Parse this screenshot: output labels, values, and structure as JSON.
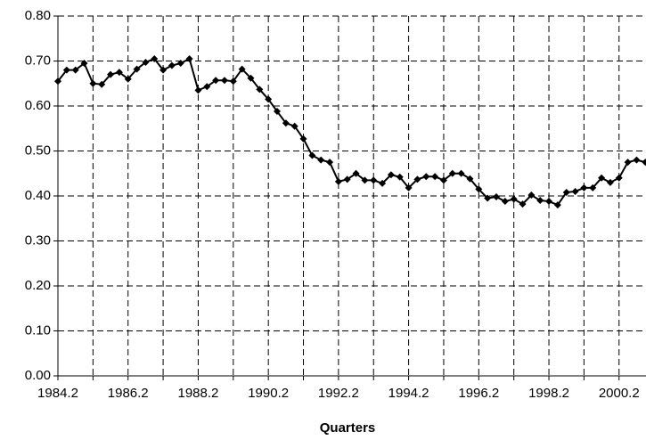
{
  "chart_data": {
    "type": "line",
    "x_label": "Quarters",
    "categories": [
      "1984.2",
      null,
      null,
      null,
      null,
      null,
      null,
      null,
      "1986.2",
      null,
      null,
      null,
      null,
      null,
      null,
      null,
      "1988.2",
      null,
      null,
      null,
      null,
      null,
      null,
      null,
      "1990.2",
      null,
      null,
      null,
      null,
      null,
      null,
      null,
      "1992.2",
      null,
      null,
      null,
      null,
      null,
      null,
      null,
      "1994.2",
      null,
      null,
      null,
      null,
      null,
      null,
      null,
      "1996.2",
      null,
      null,
      null,
      null,
      null,
      null,
      null,
      "1998.2",
      null,
      null,
      null,
      null,
      null,
      null,
      null,
      "2000.2",
      null,
      null,
      null
    ],
    "values": [
      0.655,
      0.68,
      0.68,
      0.695,
      0.65,
      0.648,
      0.67,
      0.675,
      0.66,
      0.682,
      0.697,
      0.705,
      0.68,
      0.69,
      0.695,
      0.705,
      0.635,
      0.643,
      0.657,
      0.657,
      0.655,
      0.682,
      0.662,
      0.637,
      0.615,
      0.588,
      0.562,
      0.555,
      0.527,
      0.49,
      0.48,
      0.475,
      0.432,
      0.437,
      0.45,
      0.435,
      0.435,
      0.428,
      0.447,
      0.442,
      0.418,
      0.437,
      0.443,
      0.443,
      0.435,
      0.45,
      0.45,
      0.438,
      0.415,
      0.395,
      0.398,
      0.388,
      0.393,
      0.382,
      0.402,
      0.39,
      0.388,
      0.38,
      0.408,
      0.41,
      0.418,
      0.418,
      0.44,
      0.43,
      0.44,
      0.475,
      0.48,
      0.475
    ],
    "color": "#000000",
    "ylim": [
      0,
      0.8
    ],
    "yticks": [
      {
        "value": 0,
        "label": "0.00"
      },
      {
        "value": 0.1,
        "label": "0.10"
      },
      {
        "value": 0.2,
        "label": "0.20"
      },
      {
        "value": 0.3,
        "label": "0.30"
      },
      {
        "value": 0.4,
        "label": "0.40"
      },
      {
        "value": 0.5,
        "label": "0.50"
      },
      {
        "value": 0.6,
        "label": "0.60"
      },
      {
        "value": 0.7,
        "label": "0.70"
      },
      {
        "value": 0.8,
        "label": "0.80"
      }
    ],
    "grid": true
  }
}
